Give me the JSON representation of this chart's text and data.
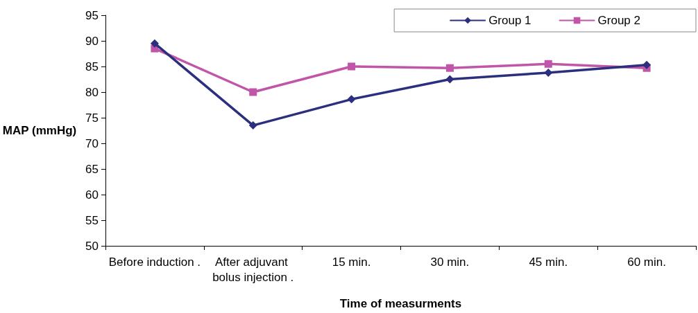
{
  "chart_data": {
    "type": "line",
    "xlabel": "Time of measurments",
    "ylabel": "MAP (mmHg)",
    "categories": [
      "Before induction .",
      "After adjuvant bolus injection .",
      "15 min.",
      "30 min.",
      "45 min.",
      "60 min."
    ],
    "series": [
      {
        "name": "Group 1",
        "color": "#2b2f7e",
        "marker": "diamond",
        "values": [
          89.5,
          73.5,
          78.6,
          82.5,
          83.8,
          85.3
        ]
      },
      {
        "name": "Group 2",
        "color": "#c155a8",
        "marker": "square",
        "values": [
          88.5,
          80,
          85,
          84.7,
          85.5,
          84.7
        ]
      }
    ],
    "ylim": [
      50,
      95
    ],
    "yticks": [
      50,
      55,
      60,
      65,
      70,
      75,
      80,
      85,
      90,
      95
    ],
    "grid": false,
    "legend": "top right",
    "line_style": "solid"
  }
}
